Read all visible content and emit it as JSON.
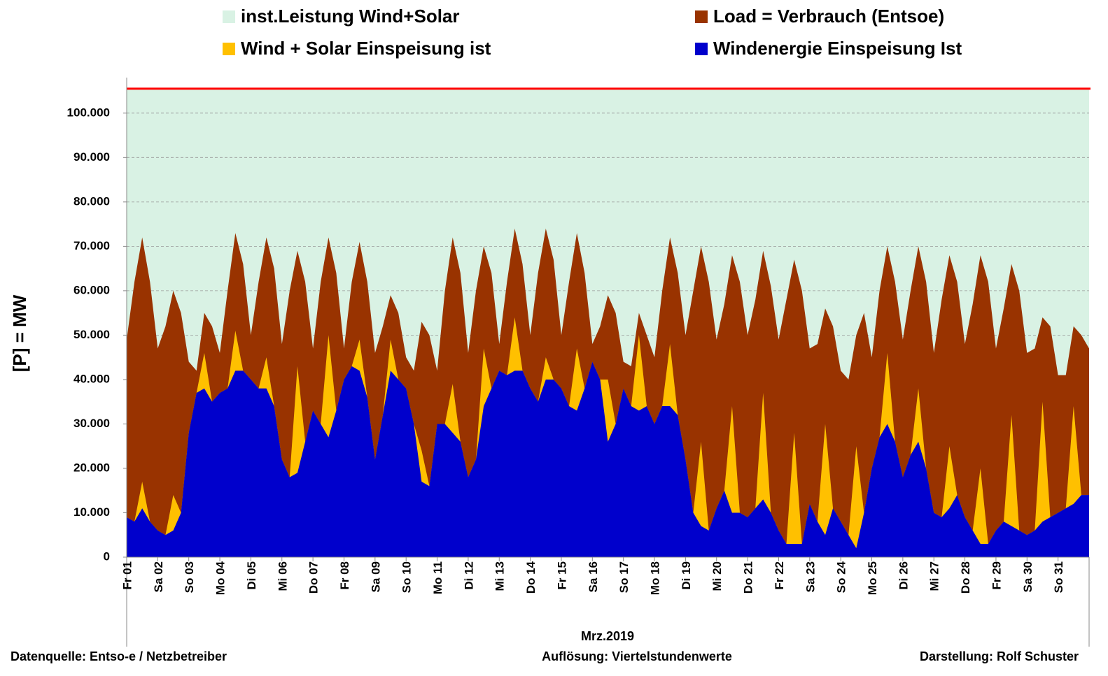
{
  "chart_data": {
    "type": "area",
    "ylabel": "[P] = MW",
    "xlabel": "Mrz.2019",
    "notes": [
      "Datenquelle:  Entso-e  / Netzbetreiber",
      "Auflösung:  Viertelstundenwerte",
      "Darstellung: Rolf Schuster"
    ],
    "ylim": [
      0,
      108000
    ],
    "yticks": [
      0,
      {
        "value": 10000,
        "label": "10.000"
      },
      {
        "value": 20000,
        "label": "20.000"
      },
      {
        "value": 30000,
        "label": "30.000"
      },
      {
        "value": 40000,
        "label": "40.000"
      },
      {
        "value": 50000,
        "label": "50.000"
      },
      {
        "value": 60000,
        "label": "60.000"
      },
      {
        "value": 70000,
        "label": "70.000"
      },
      {
        "value": 80000,
        "label": "80.000"
      },
      {
        "value": 90000,
        "label": "90.000"
      },
      {
        "value": 100000,
        "label": "100.000"
      }
    ],
    "grid": true,
    "xlim": [
      0,
      31
    ],
    "xticks": [
      {
        "value": 0,
        "label": "Fr 01"
      },
      {
        "value": 1,
        "label": "Sa 02"
      },
      {
        "value": 2,
        "label": "So 03"
      },
      {
        "value": 3,
        "label": "Mo 04"
      },
      {
        "value": 4,
        "label": "Di 05"
      },
      {
        "value": 5,
        "label": "Mi 06"
      },
      {
        "value": 6,
        "label": "Do 07"
      },
      {
        "value": 7,
        "label": "Fr 08"
      },
      {
        "value": 8,
        "label": "Sa 09"
      },
      {
        "value": 9,
        "label": "So 10"
      },
      {
        "value": 10,
        "label": "Mo 11"
      },
      {
        "value": 11,
        "label": "Di 12"
      },
      {
        "value": 12,
        "label": "Mi 13"
      },
      {
        "value": 13,
        "label": "Do 14"
      },
      {
        "value": 14,
        "label": "Fr 15"
      },
      {
        "value": 15,
        "label": "Sa 16"
      },
      {
        "value": 16,
        "label": "So 17"
      },
      {
        "value": 17,
        "label": "Mo 18"
      },
      {
        "value": 18,
        "label": "Di 19"
      },
      {
        "value": 19,
        "label": "Mi 20"
      },
      {
        "value": 20,
        "label": "Do 21"
      },
      {
        "value": 21,
        "label": "Fr 22"
      },
      {
        "value": 22,
        "label": "Sa 23"
      },
      {
        "value": 23,
        "label": "So 24"
      },
      {
        "value": 24,
        "label": "Mo 25"
      },
      {
        "value": 25,
        "label": "Di 26"
      },
      {
        "value": 26,
        "label": "Mi 27"
      },
      {
        "value": 27,
        "label": "Do 28"
      },
      {
        "value": 28,
        "label": "Fr 29"
      },
      {
        "value": 29,
        "label": "Sa 30"
      },
      {
        "value": 30,
        "label": "So 31"
      }
    ],
    "capacity": {
      "name": "inst.Leistung Wind+Solar",
      "color": "#d9f2e4",
      "line_color": "#ff0000",
      "value": 105500
    },
    "x": [
      0,
      0.25,
      0.5,
      0.75,
      1,
      1.25,
      1.5,
      1.75,
      2,
      2.25,
      2.5,
      2.75,
      3,
      3.25,
      3.5,
      3.75,
      4,
      4.25,
      4.5,
      4.75,
      5,
      5.25,
      5.5,
      5.75,
      6,
      6.25,
      6.5,
      6.75,
      7,
      7.25,
      7.5,
      7.75,
      8,
      8.25,
      8.5,
      8.75,
      9,
      9.25,
      9.5,
      9.75,
      10,
      10.25,
      10.5,
      10.75,
      11,
      11.25,
      11.5,
      11.75,
      12,
      12.25,
      12.5,
      12.75,
      13,
      13.25,
      13.5,
      13.75,
      14,
      14.25,
      14.5,
      14.75,
      15,
      15.25,
      15.5,
      15.75,
      16,
      16.25,
      16.5,
      16.75,
      17,
      17.25,
      17.5,
      17.75,
      18,
      18.25,
      18.5,
      18.75,
      19,
      19.25,
      19.5,
      19.75,
      20,
      20.25,
      20.5,
      20.75,
      21,
      21.25,
      21.5,
      21.75,
      22,
      22.25,
      22.5,
      22.75,
      23,
      23.25,
      23.5,
      23.75,
      24,
      24.25,
      24.5,
      24.75,
      25,
      25.25,
      25.5,
      25.75,
      26,
      26.25,
      26.5,
      26.75,
      27,
      27.25,
      27.5,
      27.75,
      28,
      28.25,
      28.5,
      28.75,
      29,
      29.25,
      29.5,
      29.75,
      30,
      30.25,
      30.5,
      30.75,
      31
    ],
    "series": [
      {
        "name": "Load =  Verbrauch (Entsoe)",
        "color": "#993300",
        "values": [
          49000,
          62000,
          72000,
          62000,
          47000,
          52000,
          60000,
          55000,
          44000,
          42000,
          55000,
          52000,
          46000,
          60000,
          73000,
          66000,
          50000,
          62000,
          72000,
          65000,
          48000,
          60000,
          69000,
          62000,
          47000,
          62000,
          72000,
          64000,
          47000,
          62000,
          71000,
          62000,
          46000,
          52000,
          59000,
          55000,
          45000,
          42000,
          53000,
          50000,
          42000,
          60000,
          72000,
          64000,
          46000,
          60000,
          70000,
          64000,
          48000,
          62000,
          74000,
          66000,
          50000,
          64000,
          74000,
          67000,
          50000,
          62000,
          73000,
          64000,
          48000,
          52000,
          59000,
          55000,
          44000,
          43000,
          55000,
          50000,
          45000,
          60000,
          72000,
          64000,
          50000,
          60000,
          70000,
          62000,
          49000,
          57000,
          68000,
          62000,
          50000,
          58000,
          69000,
          61000,
          49000,
          58000,
          67000,
          60000,
          47000,
          48000,
          56000,
          52000,
          42000,
          40000,
          50000,
          55000,
          45000,
          60000,
          70000,
          62000,
          49000,
          60000,
          70000,
          62000,
          46000,
          58000,
          68000,
          62000,
          48000,
          57000,
          68000,
          62000,
          47000,
          56000,
          66000,
          60000,
          46000,
          47000,
          54000,
          52000,
          41000,
          41000,
          52000,
          50000,
          47000
        ]
      },
      {
        "name": "Wind + Solar Einspeisung ist",
        "color": "#ffc000",
        "values": [
          9000,
          8000,
          17000,
          8000,
          6000,
          5000,
          14000,
          10000,
          28000,
          37000,
          46000,
          35000,
          37000,
          38000,
          51000,
          42000,
          40000,
          38000,
          45000,
          34000,
          22000,
          18000,
          43000,
          26000,
          33000,
          30000,
          50000,
          33000,
          40000,
          43000,
          49000,
          36000,
          22000,
          32000,
          49000,
          40000,
          38000,
          30000,
          24000,
          16000,
          30000,
          30000,
          39000,
          26000,
          18000,
          22000,
          47000,
          38000,
          42000,
          41000,
          54000,
          42000,
          38000,
          35000,
          45000,
          40000,
          38000,
          34000,
          47000,
          38000,
          44000,
          40000,
          40000,
          30000,
          38000,
          34000,
          50000,
          34000,
          30000,
          34000,
          48000,
          32000,
          22000,
          10000,
          26000,
          6000,
          11000,
          15000,
          34000,
          10000,
          9000,
          11000,
          37000,
          10000,
          6000,
          3000,
          28000,
          3000,
          12000,
          8000,
          30000,
          11000,
          8000,
          5000,
          25000,
          10000,
          20000,
          27000,
          46000,
          26000,
          18000,
          23000,
          38000,
          20000,
          10000,
          9000,
          25000,
          14000,
          9000,
          6000,
          20000,
          3000,
          6000,
          8000,
          32000,
          6000,
          5000,
          6000,
          35000,
          9000,
          10000,
          11000,
          34000,
          14000,
          14000
        ]
      },
      {
        "name": "Windenergie Einspeisung Ist",
        "color": "#0000cc",
        "values": [
          9000,
          8000,
          11000,
          8000,
          6000,
          5000,
          6000,
          10000,
          28000,
          37000,
          38000,
          35000,
          37000,
          38000,
          42000,
          42000,
          40000,
          38000,
          38000,
          34000,
          22000,
          18000,
          19000,
          26000,
          33000,
          30000,
          27000,
          33000,
          40000,
          43000,
          42000,
          36000,
          22000,
          32000,
          42000,
          40000,
          38000,
          30000,
          17000,
          16000,
          30000,
          30000,
          28000,
          26000,
          18000,
          22000,
          34000,
          38000,
          42000,
          41000,
          42000,
          42000,
          38000,
          35000,
          40000,
          40000,
          38000,
          34000,
          33000,
          38000,
          44000,
          40000,
          26000,
          30000,
          38000,
          34000,
          33000,
          34000,
          30000,
          34000,
          34000,
          32000,
          22000,
          10000,
          7000,
          6000,
          11000,
          15000,
          10000,
          10000,
          9000,
          11000,
          13000,
          10000,
          6000,
          3000,
          3000,
          3000,
          12000,
          8000,
          5000,
          11000,
          8000,
          5000,
          2000,
          10000,
          20000,
          27000,
          30000,
          26000,
          18000,
          23000,
          26000,
          20000,
          10000,
          9000,
          11000,
          14000,
          9000,
          6000,
          3000,
          3000,
          6000,
          8000,
          7000,
          6000,
          5000,
          6000,
          8000,
          9000,
          10000,
          11000,
          12000,
          14000,
          14000
        ]
      }
    ]
  }
}
